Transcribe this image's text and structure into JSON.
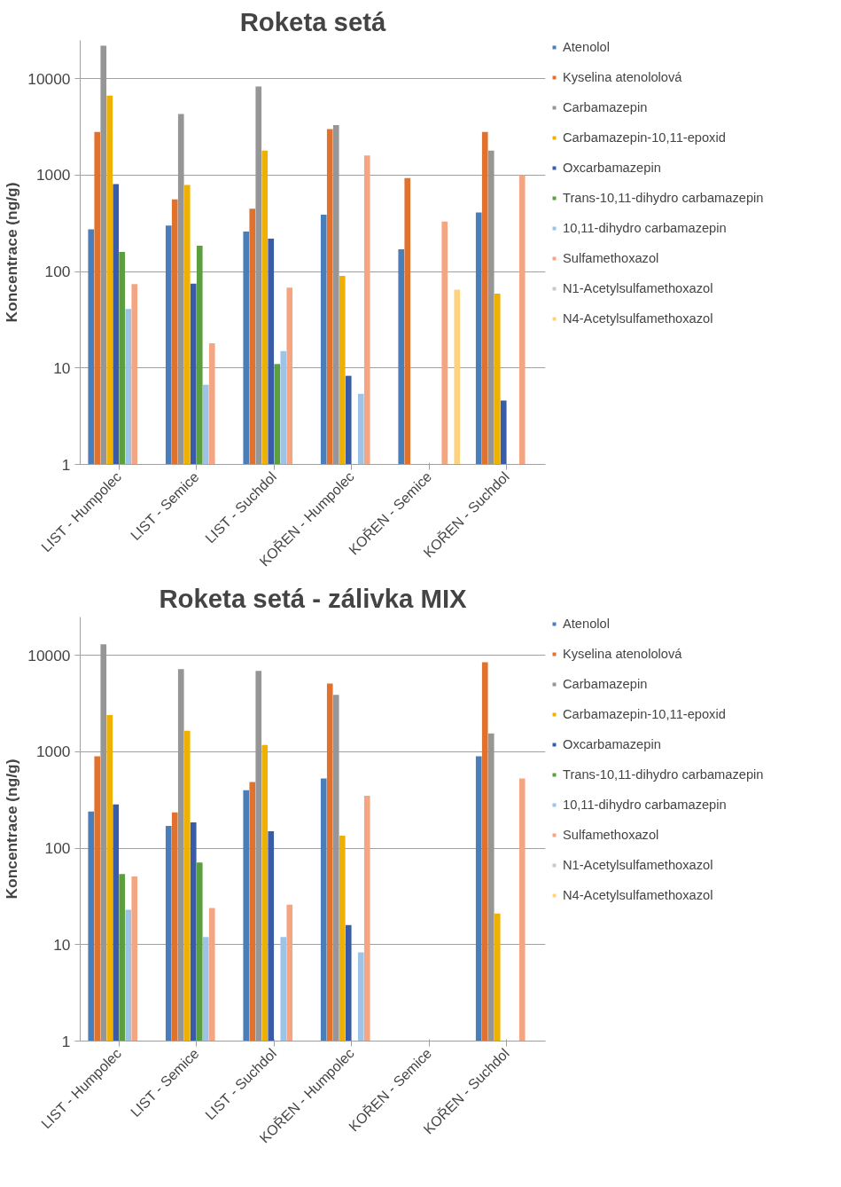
{
  "chart_data": [
    {
      "type": "bar",
      "title": "Roketa setá",
      "ylabel": "Koncentrace (ng/g)",
      "log": true,
      "grid": "y",
      "legend": "right",
      "ylim": [
        1,
        25000
      ],
      "yticks": [
        1,
        10,
        100,
        1000,
        10000
      ],
      "categories": [
        "LIST - Humpolec",
        "LIST - Semice",
        "LIST - Suchdol",
        "KOŘEN - Humpolec",
        "KOŘEN - Semice",
        "KOŘEN - Suchdol"
      ],
      "series": [
        {
          "name": "Atenolol",
          "color": "#4a7ebb",
          "values": [
            275,
            300,
            260,
            390,
            170,
            410
          ]
        },
        {
          "name": "Kyselina atenololová",
          "color": "#e0722e",
          "values": [
            2800,
            560,
            450,
            3000,
            930,
            2800
          ]
        },
        {
          "name": "Carbamazepin",
          "color": "#969696",
          "values": [
            22000,
            4300,
            8300,
            3300,
            null,
            1800
          ]
        },
        {
          "name": "Carbamazepin-10,11-epoxid",
          "color": "#f0b000",
          "values": [
            6700,
            790,
            1800,
            90,
            null,
            59
          ]
        },
        {
          "name": "Oxcarbamazepin",
          "color": "#3a5ba8",
          "values": [
            810,
            75,
            220,
            8.3,
            null,
            4.6
          ]
        },
        {
          "name": "Trans-10,11-dihydro carbamazepin",
          "color": "#5b9f3e",
          "values": [
            160,
            185,
            11,
            null,
            null,
            null
          ]
        },
        {
          "name": "10,11-dihydro carbamazepin",
          "color": "#9dc3e6",
          "values": [
            41,
            6.7,
            15,
            5.4,
            null,
            null
          ]
        },
        {
          "name": "Sulfamethoxazol",
          "color": "#f4a582",
          "values": [
            74,
            18,
            68,
            1600,
            330,
            1000
          ]
        },
        {
          "name": "N1-Acetylsulfamethoxazol",
          "color": "#c9c9c9",
          "values": [
            null,
            null,
            null,
            null,
            null,
            null
          ]
        },
        {
          "name": "N4-Acetylsulfamethoxazol",
          "color": "#ffd27f",
          "values": [
            null,
            null,
            null,
            null,
            65,
            null
          ]
        }
      ]
    },
    {
      "type": "bar",
      "title": "Roketa setá - zálivka MIX",
      "ylabel": "Koncentrace (ng/g)",
      "log": true,
      "grid": "y",
      "legend": "right",
      "ylim": [
        1,
        25000
      ],
      "yticks": [
        1,
        10,
        100,
        1000,
        10000
      ],
      "categories": [
        "LIST - Humpolec",
        "LIST - Semice",
        "LIST - Suchdol",
        "KOŘEN - Humpolec",
        "KOŘEN - Semice",
        "KOŘEN - Suchdol"
      ],
      "series": [
        {
          "name": "Atenolol",
          "color": "#4a7ebb",
          "values": [
            240,
            170,
            400,
            530,
            null,
            900
          ]
        },
        {
          "name": "Kyselina atenololová",
          "color": "#e0722e",
          "values": [
            900,
            235,
            485,
            5100,
            null,
            8500
          ]
        },
        {
          "name": "Carbamazepin",
          "color": "#969696",
          "values": [
            13000,
            7200,
            6900,
            3900,
            null,
            1550
          ]
        },
        {
          "name": "Carbamazepin-10,11-epoxid",
          "color": "#f0b000",
          "values": [
            2400,
            1650,
            1180,
            135,
            null,
            21
          ]
        },
        {
          "name": "Oxcarbamazepin",
          "color": "#3a5ba8",
          "values": [
            285,
            185,
            150,
            16,
            null,
            null
          ]
        },
        {
          "name": "Trans-10,11-dihydro carbamazepin",
          "color": "#5b9f3e",
          "values": [
            54,
            71,
            null,
            null,
            null,
            null
          ]
        },
        {
          "name": "10,11-dihydro carbamazepin",
          "color": "#9dc3e6",
          "values": [
            23,
            12,
            12,
            8.3,
            null,
            null
          ]
        },
        {
          "name": "Sulfamethoxazol",
          "color": "#f4a582",
          "values": [
            51,
            24,
            26,
            350,
            null,
            530
          ]
        },
        {
          "name": "N1-Acetylsulfamethoxazol",
          "color": "#c9c9c9",
          "values": [
            null,
            null,
            null,
            null,
            null,
            null
          ]
        },
        {
          "name": "N4-Acetylsulfamethoxazol",
          "color": "#ffd27f",
          "values": [
            null,
            null,
            null,
            null,
            null,
            null
          ]
        }
      ]
    }
  ]
}
